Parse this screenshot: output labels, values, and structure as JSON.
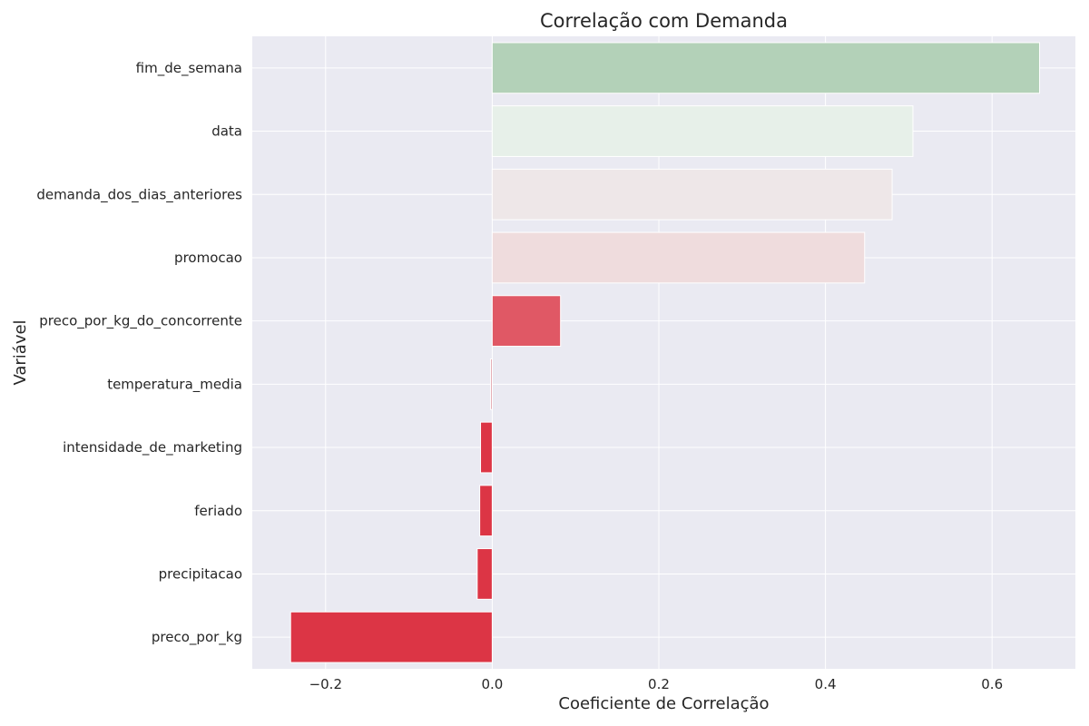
{
  "chart_data": {
    "type": "bar",
    "orientation": "horizontal",
    "title": "Correlação com Demanda",
    "xlabel": "Coeficiente de Correlação",
    "ylabel": "Variável",
    "xlim": [
      -0.288,
      0.7
    ],
    "xticks": [
      {
        "value": -0.2,
        "label": "−0.2"
      },
      {
        "value": 0.0,
        "label": "0.0"
      },
      {
        "value": 0.2,
        "label": "0.2"
      },
      {
        "value": 0.4,
        "label": "0.4"
      },
      {
        "value": 0.6,
        "label": "0.6"
      }
    ],
    "grid": true,
    "categories": [
      "fim_de_semana",
      "data",
      "demanda_dos_dias_anteriores",
      "promocao",
      "preco_por_kg_do_concorrente",
      "temperatura_media",
      "intensidade_de_marketing",
      "feriado",
      "precipitacao",
      "preco_por_kg"
    ],
    "values": [
      0.657,
      0.505,
      0.48,
      0.447,
      0.082,
      -0.002,
      -0.014,
      -0.015,
      -0.018,
      -0.242
    ],
    "colors": [
      "#b3d1b8",
      "#e7f0e9",
      "#eee7e8",
      "#efdcdd",
      "#e05865",
      "#e0a0a8",
      "#dc3545",
      "#dc3545",
      "#dc3545",
      "#dc3545"
    ],
    "background": "#eaeaf2"
  }
}
